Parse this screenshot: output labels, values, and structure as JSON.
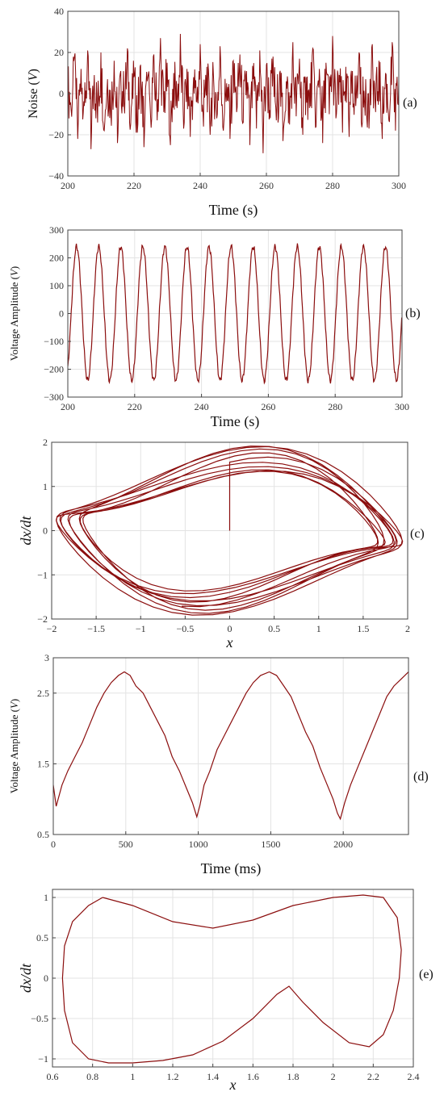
{
  "chart_data": [
    {
      "id": "a",
      "panel_label": "(a)",
      "type": "line",
      "xlabel": "Time (s)",
      "ylabel": "Noise (",
      "ylabel_unit": "V",
      "ylabel_close": ")",
      "xlim": [
        200,
        300
      ],
      "ylim": [
        -40,
        40
      ],
      "xticks": [
        200,
        220,
        240,
        260,
        280,
        300
      ],
      "yticks": [
        -40,
        -20,
        0,
        20,
        40
      ],
      "grid": true,
      "color": "#8b0e0e",
      "series": [
        {
          "x": [
            200,
            201,
            202,
            203,
            204,
            205,
            206,
            207,
            208,
            209,
            210,
            211,
            212,
            213,
            214,
            215,
            216,
            217,
            218,
            219,
            220,
            221,
            222,
            223,
            224,
            225,
            226,
            227,
            228,
            229,
            230,
            231,
            232,
            233,
            234,
            235,
            236,
            237,
            238,
            239,
            240,
            241,
            242,
            243,
            244,
            245,
            246,
            247,
            248,
            249,
            250,
            251,
            252,
            253,
            254,
            255,
            256,
            257,
            258,
            259,
            260,
            261,
            262,
            263,
            264,
            265,
            266,
            267,
            268,
            269,
            270,
            271,
            272,
            273,
            274,
            275,
            276,
            277,
            278,
            279,
            280,
            281,
            282,
            283,
            284,
            285,
            286,
            287,
            288,
            289,
            290,
            291,
            292,
            293,
            294,
            295,
            296,
            297,
            298,
            299,
            300
          ],
          "y": [
            5,
            -8,
            18,
            -22,
            12,
            -6,
            21,
            -27,
            9,
            -14,
            20,
            -18,
            7,
            -10,
            16,
            -24,
            11,
            -5,
            22,
            -15,
            8,
            -19,
            14,
            -26,
            6,
            -11,
            19,
            -13,
            27,
            -9,
            15,
            -25,
            10,
            -7,
            29,
            -17,
            12,
            -21,
            8,
            -4,
            24,
            -16,
            13,
            -20,
            9,
            -12,
            23,
            -18,
            5,
            -22,
            16,
            -9,
            19,
            -14,
            11,
            -25,
            7,
            -17,
            21,
            -29,
            14,
            -8,
            18,
            -13,
            10,
            -23,
            6,
            -15,
            25,
            -11,
            17,
            -20,
            8,
            -7,
            22,
            -16,
            12,
            -24,
            15,
            -10,
            28,
            -12,
            9,
            -19,
            13,
            -21,
            11,
            -6,
            20,
            -14,
            7,
            -17,
            24,
            -9,
            16,
            -22,
            10,
            -13,
            25,
            -18,
            6
          ]
        }
      ]
    },
    {
      "id": "b",
      "panel_label": "(b)",
      "type": "line",
      "xlabel": "Time (s)",
      "ylabel": "Voltage Amplitude (",
      "ylabel_unit": "V",
      "ylabel_close": ")",
      "xlim": [
        200,
        300
      ],
      "ylim": [
        -300,
        300
      ],
      "xticks": [
        200,
        220,
        240,
        260,
        280,
        300
      ],
      "yticks": [
        -300,
        -200,
        -100,
        0,
        100,
        200,
        300
      ],
      "grid": true,
      "color": "#8b0e0e",
      "signal": {
        "form": "sine",
        "amplitude": 240,
        "period_s": 6.6,
        "phase_start_s": 201
      }
    },
    {
      "id": "c",
      "panel_label": "(c)",
      "type": "line",
      "xlabel": "x",
      "ylabel": "dx/dt",
      "xlim": [
        -2,
        2
      ],
      "ylim": [
        -2,
        2
      ],
      "xticks": [
        -2,
        -1.5,
        -1,
        -0.5,
        0,
        0.5,
        1,
        1.5,
        2
      ],
      "yticks": [
        -2,
        -1,
        0,
        1,
        2
      ],
      "grid": true,
      "color": "#8b0e0e",
      "signal": {
        "form": "double-loop phase portrait",
        "x_amplitude_range": [
          1.7,
          1.95
        ],
        "dxdt_amplitude_range": [
          1.3,
          1.9
        ],
        "start": [
          0,
          0
        ]
      }
    },
    {
      "id": "d",
      "panel_label": "(d)",
      "type": "line",
      "xlabel": "Time (ms)",
      "ylabel": "Voltage Amplitude (",
      "ylabel_unit": "V",
      "ylabel_close": ")",
      "xlim": [
        0,
        2450
      ],
      "ylim": [
        0.5,
        3
      ],
      "xticks": [
        0,
        500,
        1000,
        1500,
        2000
      ],
      "yticks": [
        0.5,
        1.5,
        2.5,
        3
      ],
      "grid": true,
      "color": "#8b0e0e",
      "series": [
        {
          "x": [
            0,
            20,
            60,
            100,
            150,
            200,
            250,
            300,
            350,
            400,
            450,
            490,
            530,
            570,
            620,
            670,
            720,
            770,
            820,
            870,
            920,
            960,
            990,
            1010,
            1040,
            1080,
            1130,
            1180,
            1230,
            1280,
            1330,
            1380,
            1430,
            1490,
            1540,
            1590,
            1640,
            1690,
            1740,
            1790,
            1840,
            1890,
            1930,
            1960,
            1980,
            2010,
            2050,
            2100,
            2150,
            2200,
            2250,
            2300,
            2350,
            2400,
            2450
          ],
          "y": [
            1.2,
            0.9,
            1.2,
            1.4,
            1.6,
            1.8,
            2.05,
            2.3,
            2.5,
            2.65,
            2.75,
            2.8,
            2.75,
            2.6,
            2.5,
            2.3,
            2.1,
            1.9,
            1.6,
            1.4,
            1.15,
            0.95,
            0.75,
            0.9,
            1.2,
            1.4,
            1.7,
            1.9,
            2.1,
            2.3,
            2.5,
            2.65,
            2.75,
            2.8,
            2.75,
            2.6,
            2.45,
            2.2,
            1.95,
            1.75,
            1.45,
            1.2,
            1.0,
            0.8,
            0.72,
            0.95,
            1.2,
            1.45,
            1.7,
            1.95,
            2.2,
            2.45,
            2.6,
            2.7,
            2.8
          ]
        }
      ]
    },
    {
      "id": "e",
      "panel_label": "(e)",
      "type": "line",
      "xlabel": "x",
      "ylabel": "dx/dt",
      "xlim": [
        0.6,
        2.4
      ],
      "ylim": [
        -1.1,
        1.1
      ],
      "xticks": [
        0.6,
        0.8,
        1,
        1.2,
        1.4,
        1.6,
        1.8,
        2,
        2.2,
        2.4
      ],
      "yticks": [
        -1,
        -0.5,
        0,
        0.5,
        1
      ],
      "grid": true,
      "color": "#8b0e0e",
      "series": [
        {
          "x": [
            0.85,
            1.0,
            1.2,
            1.4,
            1.6,
            1.8,
            2.0,
            2.15,
            2.25,
            2.32,
            2.34,
            2.33,
            2.3,
            2.25,
            2.18,
            2.08,
            1.95,
            1.85,
            1.78,
            1.72,
            1.6,
            1.45,
            1.3,
            1.15,
            1.0,
            0.88,
            0.78,
            0.7,
            0.66,
            0.65,
            0.66,
            0.7,
            0.78,
            0.85
          ],
          "y": [
            1.0,
            0.9,
            0.7,
            0.62,
            0.72,
            0.9,
            1.0,
            1.03,
            1.0,
            0.75,
            0.35,
            0.0,
            -0.4,
            -0.7,
            -0.85,
            -0.8,
            -0.55,
            -0.3,
            -0.1,
            -0.2,
            -0.5,
            -0.78,
            -0.95,
            -1.02,
            -1.05,
            -1.05,
            -1.0,
            -0.8,
            -0.4,
            0.0,
            0.4,
            0.7,
            0.9,
            1.0
          ]
        }
      ]
    }
  ]
}
